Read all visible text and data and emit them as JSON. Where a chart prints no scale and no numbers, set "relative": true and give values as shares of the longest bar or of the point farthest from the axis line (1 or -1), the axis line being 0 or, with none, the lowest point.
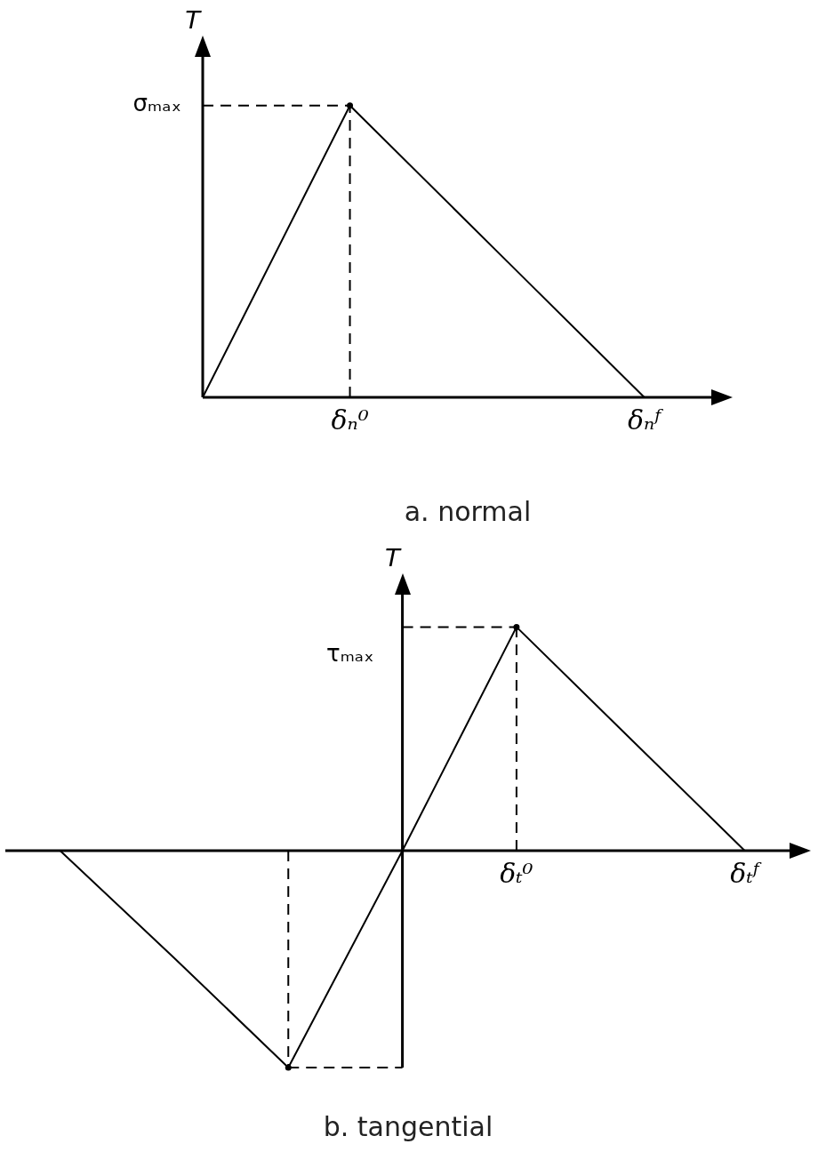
{
  "chart_data": [
    {
      "type": "line",
      "title": "a. normal",
      "ylabel": "T",
      "relative": true,
      "categories": [
        null,
        "δₙ⁰",
        null,
        "δₙᶠ"
      ],
      "series": [
        {
          "color": "#000000",
          "values": [
            0,
            1,
            0.5,
            0
          ]
        },
        {
          "color": "#000000",
          "values": [
            1,
            1,
            null,
            null
          ],
          "line_style": "dashed"
        },
        {
          "type": "lollipop",
          "color": "#000000",
          "values": [
            null,
            1,
            null,
            null
          ],
          "line_style": "dashed",
          "marker": "circle"
        }
      ],
      "annotations": [
        "σₘₐₓ"
      ]
    },
    {
      "type": "line",
      "title": "b. tangential",
      "ylabel": "T",
      "relative": true,
      "categories": [
        null,
        null,
        null,
        null,
        "δₜ⁰",
        null,
        "δₜᶠ"
      ],
      "series": [
        {
          "color": "#000000",
          "values": [
            0,
            -0.48,
            -0.97,
            0,
            1,
            0.5,
            0
          ]
        },
        {
          "color": "#000000",
          "values": [
            null,
            null,
            null,
            1,
            1,
            null,
            null
          ],
          "line_style": "dashed"
        },
        {
          "color": "#000000",
          "values": [
            null,
            null,
            -0.97,
            -0.97,
            null,
            null,
            null
          ],
          "line_style": "dashed"
        },
        {
          "type": "lollipop",
          "color": "#000000",
          "values": [
            null,
            null,
            -0.97,
            null,
            1,
            null,
            null
          ],
          "line_style": "dashed",
          "marker": "circle"
        }
      ],
      "annotations": [
        "τₘₐₓ"
      ]
    }
  ]
}
